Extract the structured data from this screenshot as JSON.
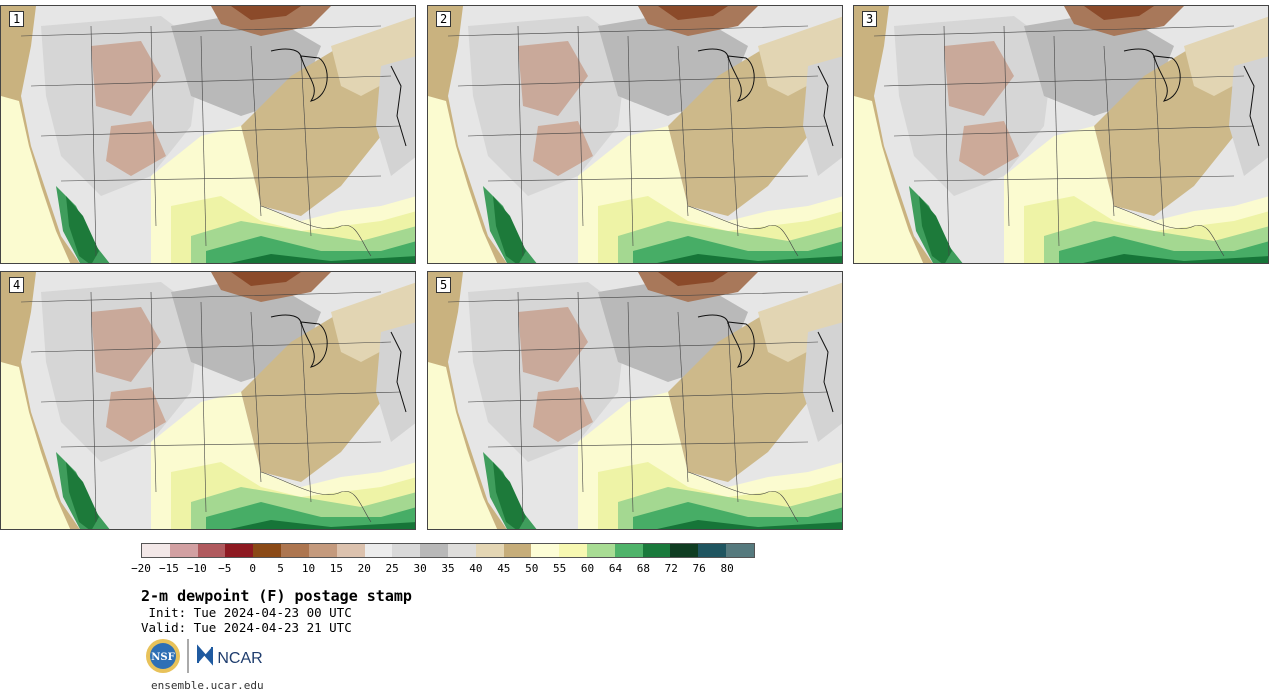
{
  "panels": [
    {
      "label": "1"
    },
    {
      "label": "2"
    },
    {
      "label": "3"
    },
    {
      "label": "4"
    },
    {
      "label": "5"
    }
  ],
  "colorbar": {
    "colors": [
      "#f3e8e8",
      "#d2a0a2",
      "#b05a5e",
      "#8e1a22",
      "#8b4a17",
      "#ad7650",
      "#c49a7d",
      "#dcc2ae",
      "#ececec",
      "#d9d9d9",
      "#b8b8b8",
      "#dedddb",
      "#e4d6b4",
      "#c6ad7a",
      "#fdfdd6",
      "#f7f8b2",
      "#a8dc94",
      "#4fb36a",
      "#1a7a3c",
      "#0f3d22",
      "#1f5560",
      "#567a7e"
    ],
    "ticks": [
      "−20",
      "−15",
      "−10",
      "−5",
      "0",
      "5",
      "10",
      "15",
      "20",
      "25",
      "30",
      "35",
      "40",
      "45",
      "50",
      "55",
      "60",
      "64",
      "68",
      "72",
      "76",
      "80"
    ]
  },
  "title": "2-m dewpoint (F) postage stamp",
  "init": " Init: Tue 2024-04-23 00 UTC",
  "valid": "Valid: Tue 2024-04-23 21 UTC",
  "logos": {
    "nsf": "NSF",
    "ncar": "NCAR"
  },
  "site": "ensemble.ucar.edu"
}
